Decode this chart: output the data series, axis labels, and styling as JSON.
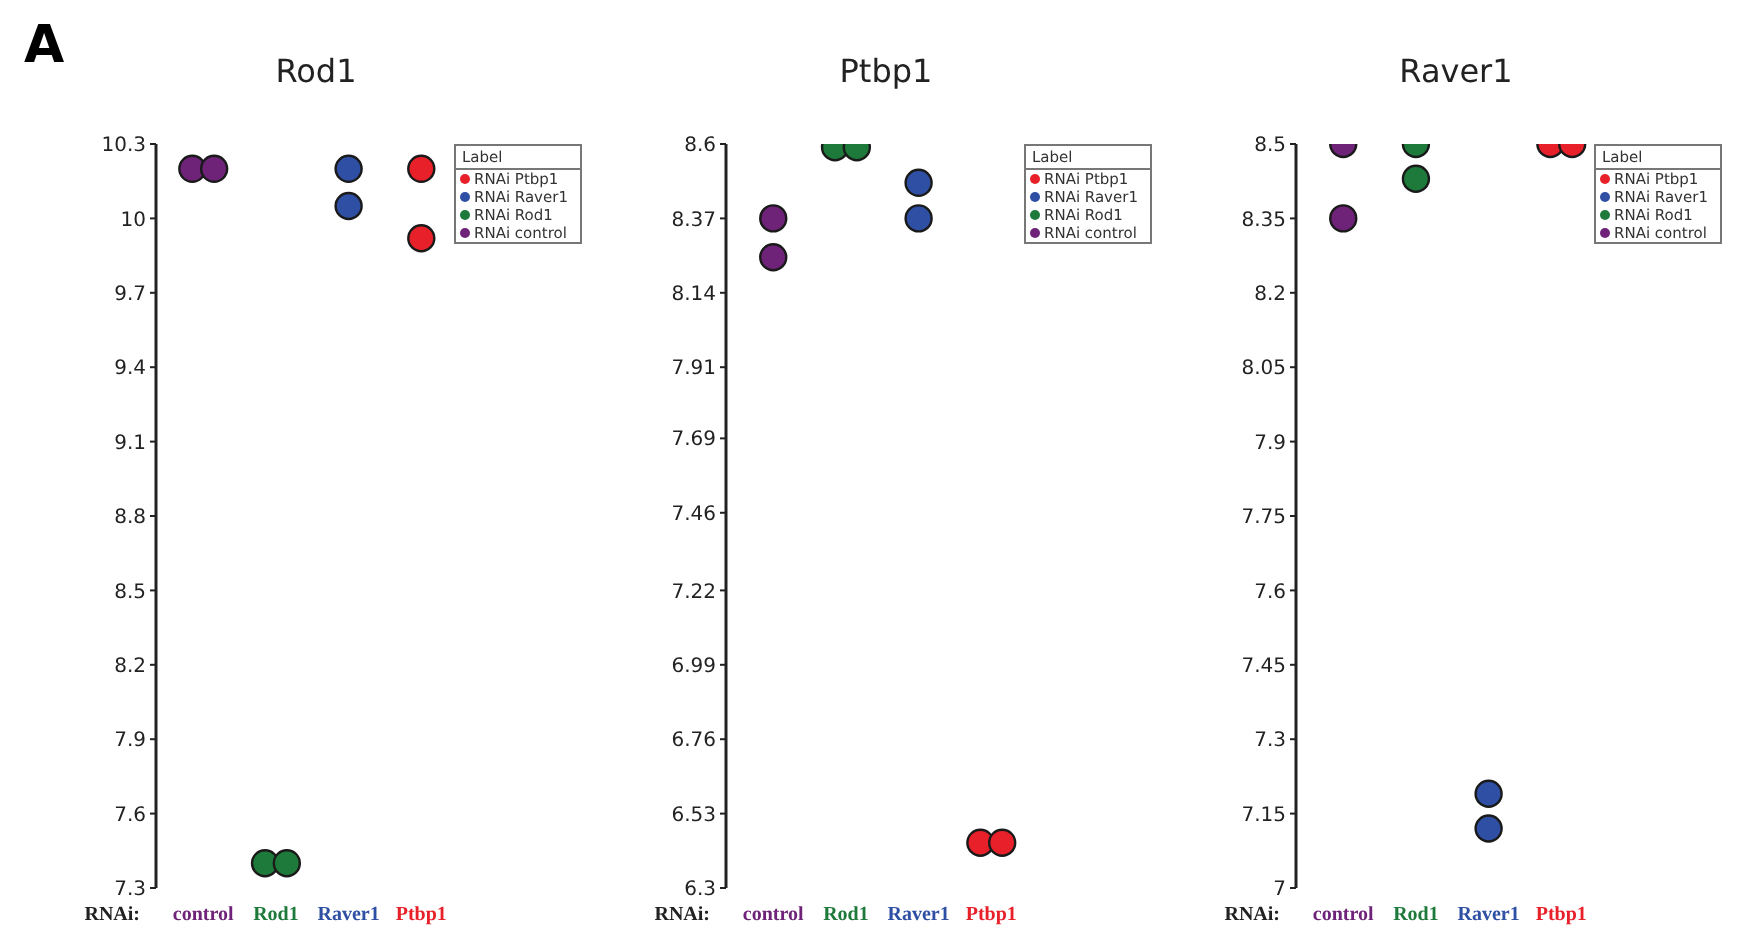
{
  "chart_data": [
    {
      "type": "scatter",
      "title": "Rod1",
      "xlabel": "RNAi:",
      "legend_title": "Label",
      "annotations": [
        "A"
      ],
      "categories": [
        "control",
        "Rod1",
        "Raver1",
        "Ptbp1"
      ],
      "ylim": [
        7.3,
        10.3
      ],
      "yticks": [
        7.3,
        7.6,
        7.9,
        8.2,
        8.5,
        8.8,
        9.1,
        9.4,
        9.7,
        10.0,
        10.3
      ],
      "marker": "circle",
      "legend": "top right",
      "grid": false,
      "series": [
        {
          "name": "RNAi Ptbp1",
          "color": "#e8202a",
          "x": [
            "Ptbp1",
            "Ptbp1"
          ],
          "values": [
            10.2,
            9.92
          ]
        },
        {
          "name": "RNAi Raver1",
          "color": "#2e4fa3",
          "x": [
            "Raver1",
            "Raver1"
          ],
          "values": [
            10.2,
            10.05
          ]
        },
        {
          "name": "RNAi Rod1",
          "color": "#1e7a3a",
          "x": [
            "Rod1",
            "Rod1"
          ],
          "values": [
            7.4,
            7.4
          ]
        },
        {
          "name": "RNAi control",
          "color": "#6e2379",
          "x": [
            "control",
            "control"
          ],
          "values": [
            10.2,
            10.2
          ]
        }
      ]
    },
    {
      "type": "scatter",
      "title": "Ptbp1",
      "xlabel": "RNAi:",
      "legend_title": "Label",
      "categories": [
        "control",
        "Rod1",
        "Raver1",
        "Ptbp1"
      ],
      "ylim": [
        6.3,
        8.6
      ],
      "yticks": [
        6.3,
        6.53,
        6.76,
        6.99,
        7.22,
        7.46,
        7.69,
        7.91,
        8.14,
        8.37,
        8.6
      ],
      "marker": "circle",
      "legend": "top right",
      "grid": false,
      "series": [
        {
          "name": "RNAi Ptbp1",
          "color": "#e8202a",
          "x": [
            "Ptbp1",
            "Ptbp1"
          ],
          "values": [
            6.44,
            6.44
          ]
        },
        {
          "name": "RNAi Raver1",
          "color": "#2e4fa3",
          "x": [
            "Raver1",
            "Raver1"
          ],
          "values": [
            8.48,
            8.37
          ]
        },
        {
          "name": "RNAi Rod1",
          "color": "#1e7a3a",
          "x": [
            "Rod1",
            "Rod1"
          ],
          "values": [
            8.59,
            8.59
          ]
        },
        {
          "name": "RNAi control",
          "color": "#6e2379",
          "x": [
            "control",
            "control"
          ],
          "values": [
            8.37,
            8.25
          ]
        }
      ]
    },
    {
      "type": "scatter",
      "title": "Raver1",
      "xlabel": "RNAi:",
      "legend_title": "Label",
      "categories": [
        "control",
        "Rod1",
        "Raver1",
        "Ptbp1"
      ],
      "ylim": [
        7,
        8.5
      ],
      "yticks": [
        7,
        7.15,
        7.3,
        7.45,
        7.6,
        7.75,
        7.9,
        8.05,
        8.2,
        8.35,
        8.5
      ],
      "marker": "circle",
      "legend": "top right",
      "grid": false,
      "series": [
        {
          "name": "RNAi Ptbp1",
          "color": "#e8202a",
          "x": [
            "Ptbp1",
            "Ptbp1"
          ],
          "values": [
            8.5,
            8.5
          ]
        },
        {
          "name": "RNAi Raver1",
          "color": "#2e4fa3",
          "x": [
            "Raver1",
            "Raver1"
          ],
          "values": [
            7.19,
            7.12
          ]
        },
        {
          "name": "RNAi Rod1",
          "color": "#1e7a3a",
          "x": [
            "Rod1",
            "Rod1"
          ],
          "values": [
            8.5,
            8.43
          ]
        },
        {
          "name": "RNAi control",
          "color": "#6e2379",
          "x": [
            "control",
            "control"
          ],
          "values": [
            8.5,
            8.35
          ]
        }
      ]
    }
  ]
}
